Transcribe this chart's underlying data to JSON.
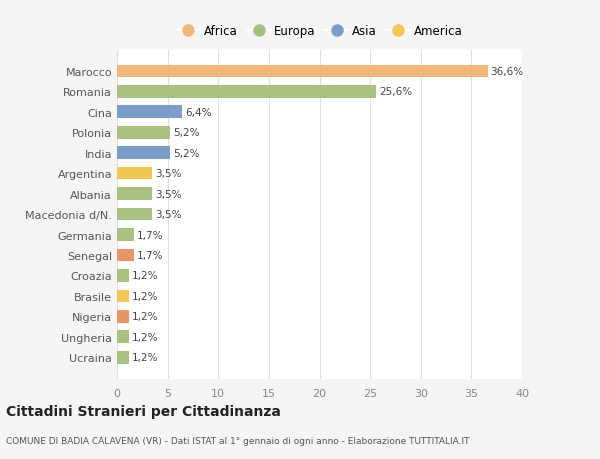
{
  "categories": [
    "Ucraina",
    "Ungheria",
    "Nigeria",
    "Brasile",
    "Croazia",
    "Senegal",
    "Germania",
    "Macedonia d/N.",
    "Albania",
    "Argentina",
    "India",
    "Polonia",
    "Cina",
    "Romania",
    "Marocco"
  ],
  "values": [
    1.2,
    1.2,
    1.2,
    1.2,
    1.2,
    1.7,
    1.7,
    3.5,
    3.5,
    3.5,
    5.2,
    5.2,
    6.4,
    25.6,
    36.6
  ],
  "labels": [
    "1,2%",
    "1,2%",
    "1,2%",
    "1,2%",
    "1,2%",
    "1,7%",
    "1,7%",
    "3,5%",
    "3,5%",
    "3,5%",
    "5,2%",
    "5,2%",
    "6,4%",
    "25,6%",
    "36,6%"
  ],
  "colors": [
    "#a8c080",
    "#a8c080",
    "#e8956a",
    "#f0c855",
    "#a8c080",
    "#e8956a",
    "#a8c080",
    "#a8c080",
    "#a8c080",
    "#f0c855",
    "#7b9dc8",
    "#a8c080",
    "#7b9dc8",
    "#a8c080",
    "#f0b87a"
  ],
  "legend_items": [
    {
      "label": "Africa",
      "color": "#f0b87a"
    },
    {
      "label": "Europa",
      "color": "#a8c080"
    },
    {
      "label": "Asia",
      "color": "#7b9dc8"
    },
    {
      "label": "America",
      "color": "#f0c855"
    }
  ],
  "title": "Cittadini Stranieri per Cittadinanza",
  "subtitle": "COMUNE DI BADIA CALAVENA (VR) - Dati ISTAT al 1° gennaio di ogni anno - Elaborazione TUTTITALIA.IT",
  "xlim": [
    0,
    40
  ],
  "xticks": [
    0,
    5,
    10,
    15,
    20,
    25,
    30,
    35,
    40
  ],
  "background_color": "#f5f5f5",
  "plot_bg_color": "#ffffff",
  "grid_color": "#e0e0e0"
}
